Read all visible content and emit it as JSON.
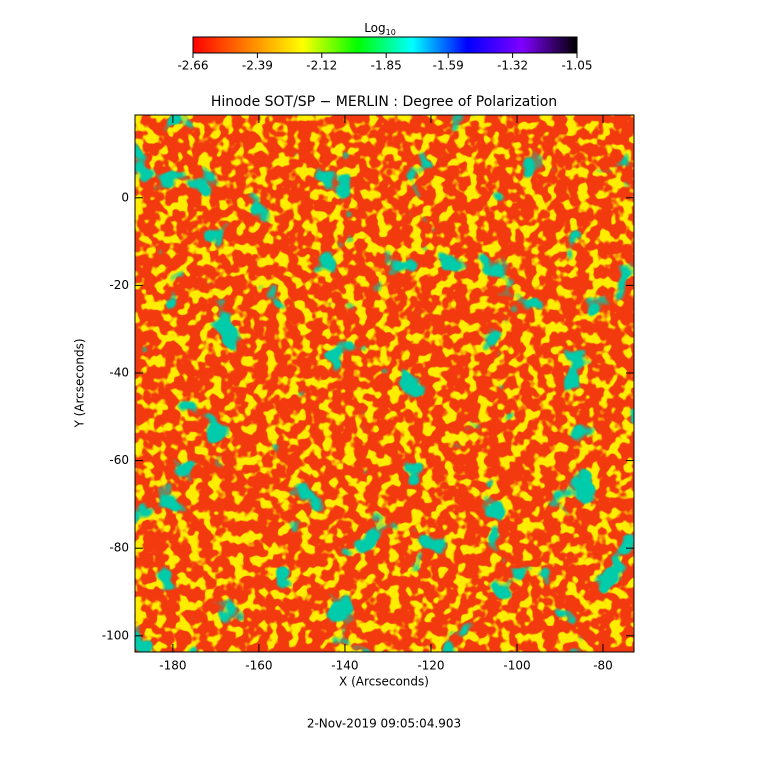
{
  "chart_data": {
    "type": "heatmap",
    "title": "Hinode SOT/SP − MERLIN : Degree of Polarization",
    "x_label": "X (Arcseconds)",
    "y_label": "Y (Arcseconds)",
    "xlim": [
      -188.8,
      -72.8
    ],
    "xticks": [
      -180,
      -160,
      -140,
      -120,
      -100,
      -80
    ],
    "ylim": [
      -103.7,
      18.9
    ],
    "yticks": [
      -100,
      -80,
      -60,
      -40,
      -20,
      0
    ],
    "grid": false,
    "colorbar": {
      "label": "Log",
      "label_subscript": "10",
      "lim": [
        -2.66,
        -1.05
      ],
      "ticks": [
        -2.66,
        -2.39,
        -2.12,
        -1.85,
        -1.59,
        -1.32,
        -1.05
      ],
      "colors": [
        "#ff0000",
        "#ff8000",
        "#ffff00",
        "#00ff00",
        "#00ffff",
        "#0000ff",
        "#8000ff",
        "#000000"
      ]
    }
  },
  "footer": {
    "timestamp": "2-Nov-2019 09:05:04.903"
  }
}
